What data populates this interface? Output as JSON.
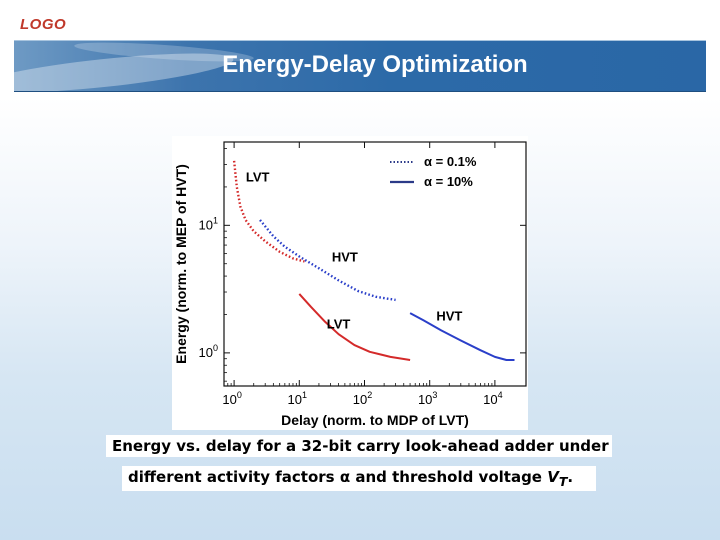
{
  "logo": "LOGO",
  "slide_title": "Energy-Delay Optimization",
  "caption": {
    "line1": "Energy vs. delay for a 32-bit carry look-ahead adder under",
    "line2_a": "different activity factors ",
    "alpha": "α",
    "line2_b": " and threshold voltage ",
    "vt": "V",
    "vt_sub": "T",
    "line2_c": "."
  },
  "colors": {
    "red": "#d42a2a",
    "blue": "#2a3fc9",
    "title_bar": "#2c6aa8",
    "logo": "#c0392b"
  },
  "chart_data": {
    "type": "line",
    "xlabel": "Delay (norm. to MDP of LVT)",
    "ylabel": "Energy (norm. to MEP of HVT)",
    "xscale": "log",
    "yscale": "log",
    "xlim": [
      0.7,
      30000
    ],
    "ylim": [
      0.55,
      45
    ],
    "x_ticks": [
      {
        "value": 1,
        "base": "10",
        "exp": "0"
      },
      {
        "value": 10,
        "base": "10",
        "exp": "1"
      },
      {
        "value": 100,
        "base": "10",
        "exp": "2"
      },
      {
        "value": 1000,
        "base": "10",
        "exp": "3"
      },
      {
        "value": 10000,
        "base": "10",
        "exp": "4"
      }
    ],
    "y_ticks": [
      {
        "value": 1,
        "base": "10",
        "exp": "0"
      },
      {
        "value": 10,
        "base": "10",
        "exp": "1"
      }
    ],
    "legend_position": "top-right",
    "legend": [
      {
        "alpha": "α",
        "text": " = 0.1%",
        "style": "dotted"
      },
      {
        "alpha": "α",
        "text": " = 10%",
        "style": "solid"
      }
    ],
    "series": [
      {
        "name": "LVT",
        "activity": "0.1%",
        "style": "dotted",
        "color": "#d42a2a",
        "x": [
          1.0,
          1.1,
          1.25,
          1.5,
          2.0,
          3.0,
          5.0,
          8.0,
          12.0
        ],
        "y": [
          32,
          20,
          14,
          11,
          9,
          7.5,
          6.2,
          5.5,
          5.2
        ]
      },
      {
        "name": "HVT",
        "activity": "0.1%",
        "style": "dotted",
        "color": "#2a3fc9",
        "x": [
          2.5,
          4,
          6,
          10,
          20,
          40,
          80,
          150,
          300
        ],
        "y": [
          11,
          8.2,
          6.8,
          5.7,
          4.6,
          3.7,
          3.05,
          2.75,
          2.6
        ]
      },
      {
        "name": "LVT",
        "activity": "10%",
        "style": "solid",
        "color": "#d42a2a",
        "x": [
          10,
          15,
          25,
          40,
          70,
          120,
          250,
          500
        ],
        "y": [
          2.9,
          2.3,
          1.75,
          1.4,
          1.15,
          1.02,
          0.93,
          0.88
        ]
      },
      {
        "name": "HVT",
        "activity": "10%",
        "style": "solid",
        "color": "#2a3fc9",
        "x": [
          500,
          800,
          1500,
          3000,
          6000,
          10000,
          15000,
          20000
        ],
        "y": [
          2.05,
          1.8,
          1.5,
          1.25,
          1.05,
          0.93,
          0.88,
          0.88
        ]
      }
    ],
    "annotations": [
      {
        "text": "LVT",
        "x": 2.3,
        "y": 22
      },
      {
        "text": "HVT",
        "x": 50,
        "y": 5.2
      },
      {
        "text": "LVT",
        "x": 40,
        "y": 1.55
      },
      {
        "text": "HVT",
        "x": 2000,
        "y": 1.8
      }
    ]
  }
}
